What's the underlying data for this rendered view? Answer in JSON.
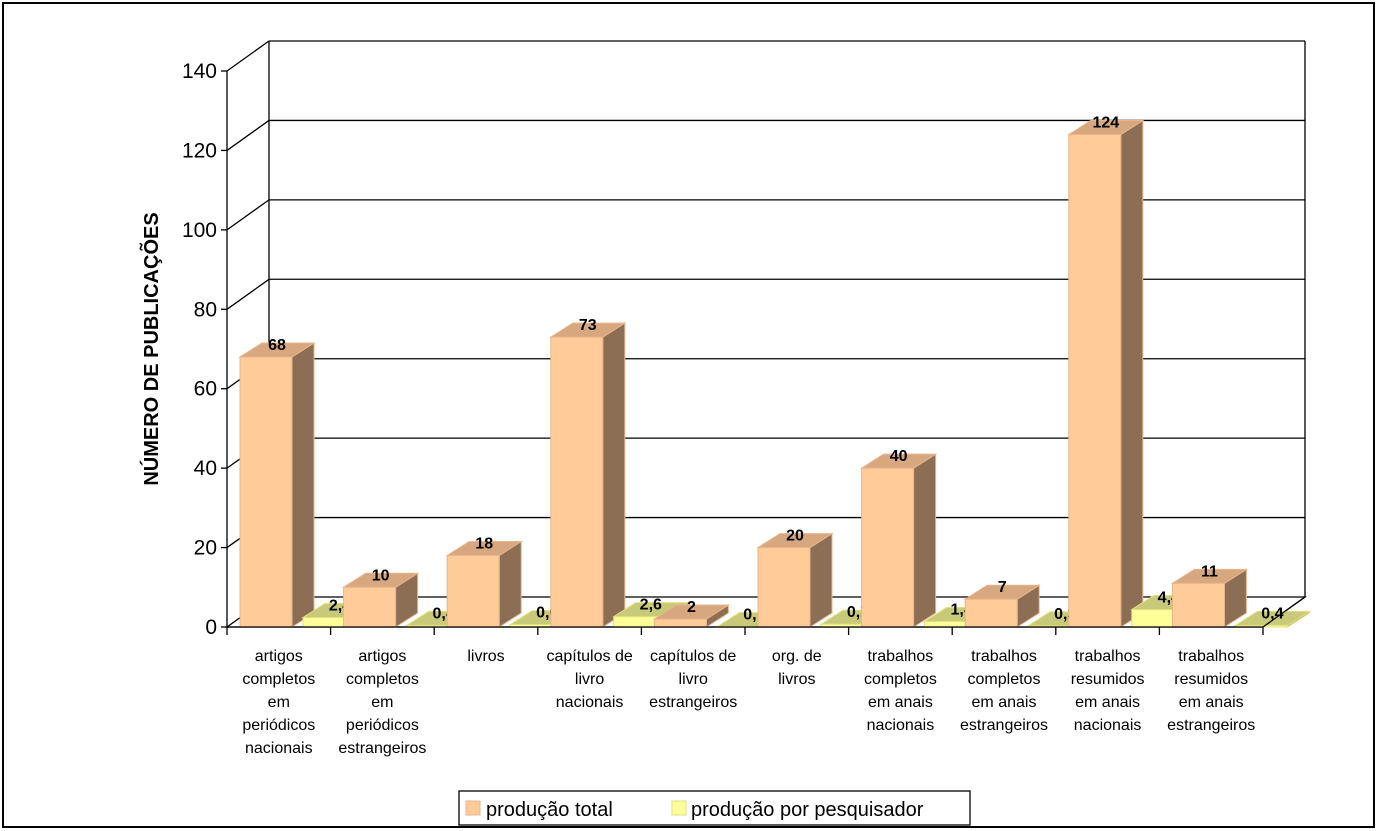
{
  "chart_data": {
    "type": "bar",
    "title": "",
    "xlabel": "",
    "ylabel": "NÚMERO DE PUBLICAÇÕES",
    "ylim": [
      0,
      140
    ],
    "yticks": [
      0,
      20,
      40,
      60,
      80,
      100,
      120,
      140
    ],
    "grid": true,
    "legend_position": "bottom",
    "categories": [
      [
        "artigos",
        "completos",
        "em",
        "periódicos",
        "nacionais"
      ],
      [
        "artigos",
        "completos",
        "em",
        "periódicos",
        "estrangeiros"
      ],
      [
        "livros"
      ],
      [
        "capítulos de",
        "livro",
        "nacionais"
      ],
      [
        "capítulos de",
        "livro",
        "estrangeiros"
      ],
      [
        "org. de",
        "livros"
      ],
      [
        "trabalhos",
        "completos",
        "em anais",
        "nacionais"
      ],
      [
        "trabalhos",
        "completos",
        "em anais",
        "estrangeiros"
      ],
      [
        "trabalhos",
        "resumidos",
        "em anais",
        "nacionais"
      ],
      [
        "trabalhos",
        "resumidos",
        "em anais",
        "estrangeiros"
      ]
    ],
    "series": [
      {
        "name": "produção total",
        "color": "#FFCC99",
        "values": [
          68,
          10,
          18,
          73,
          2,
          20,
          40,
          7,
          124,
          11
        ],
        "labels": [
          "68",
          "10",
          "18",
          "73",
          "2",
          "20",
          "40",
          "7",
          "124",
          "11"
        ]
      },
      {
        "name": "produção por pesquisador",
        "color": "#FFFF99",
        "values": [
          2.4,
          0.4,
          0.6,
          2.6,
          0.1,
          0.7,
          1.4,
          0.3,
          4.4,
          0.4
        ],
        "labels": [
          "2,4",
          "0,4",
          "0,6",
          "2,6",
          "0,1",
          "0,7",
          "1,4",
          "0,3",
          "4,4",
          "0,4"
        ]
      }
    ]
  }
}
